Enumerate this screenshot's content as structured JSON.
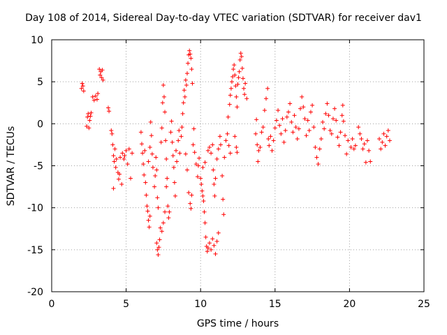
{
  "chart_data": {
    "type": "scatter",
    "title": "Day 108 of 2014, Sidereal Day-to-day VTEC variation (SDTVAR) for receiver dav1",
    "xlabel": "GPS time / hours",
    "ylabel": "SDTVAR / TECUs",
    "xlim": [
      0,
      25
    ],
    "ylim": [
      -20,
      10
    ],
    "xticks": [
      "0",
      "5",
      "10",
      "15",
      "20",
      "25"
    ],
    "yticks": [
      "-20",
      "-15",
      "-10",
      "-5",
      "0",
      "5",
      "10"
    ],
    "grid": true,
    "marker": "+",
    "color": "#ff0000",
    "series": [
      {
        "name": "SDTVAR",
        "points": [
          [
            2.0,
            4.2
          ],
          [
            2.05,
            4.8
          ],
          [
            2.1,
            4.5
          ],
          [
            2.15,
            3.9
          ],
          [
            2.35,
            -0.3
          ],
          [
            2.4,
            0.8
          ],
          [
            2.45,
            1.2
          ],
          [
            2.5,
            -0.5
          ],
          [
            2.55,
            0.4
          ],
          [
            2.6,
            0.9
          ],
          [
            2.65,
            1.3
          ],
          [
            2.75,
            3.2
          ],
          [
            2.85,
            2.8
          ],
          [
            2.95,
            3.3
          ],
          [
            3.05,
            2.9
          ],
          [
            3.1,
            3.6
          ],
          [
            3.2,
            6.5
          ],
          [
            3.25,
            5.8
          ],
          [
            3.3,
            6.2
          ],
          [
            3.35,
            5.5
          ],
          [
            3.4,
            6.4
          ],
          [
            3.45,
            5.2
          ],
          [
            3.8,
            1.9
          ],
          [
            3.85,
            1.5
          ],
          [
            4.0,
            -0.8
          ],
          [
            4.05,
            -1.2
          ],
          [
            4.1,
            -2.5
          ],
          [
            4.15,
            -3.8
          ],
          [
            4.2,
            -4.5
          ],
          [
            4.25,
            -3.0
          ],
          [
            4.3,
            -5.2
          ],
          [
            4.35,
            -4.2
          ],
          [
            4.45,
            -5.8
          ],
          [
            4.5,
            -6.6
          ],
          [
            4.55,
            -6.0
          ],
          [
            4.15,
            -7.7
          ],
          [
            4.6,
            -4.0
          ],
          [
            4.7,
            -7.2
          ],
          [
            4.75,
            -3.5
          ],
          [
            4.85,
            -4.2
          ],
          [
            4.9,
            -3.8
          ],
          [
            5.0,
            -3.2
          ],
          [
            5.1,
            -4.8
          ],
          [
            5.2,
            -3.0
          ],
          [
            5.3,
            -6.5
          ],
          [
            5.4,
            -3.5
          ],
          [
            6.0,
            -1.0
          ],
          [
            6.05,
            -2.4
          ],
          [
            6.1,
            -3.5
          ],
          [
            6.15,
            -4.8
          ],
          [
            6.2,
            -6.1
          ],
          [
            6.25,
            -3.2
          ],
          [
            6.3,
            -7.0
          ],
          [
            6.35,
            -8.5
          ],
          [
            6.4,
            -9.8
          ],
          [
            6.45,
            -10.4
          ],
          [
            6.5,
            -11.5
          ],
          [
            6.55,
            -12.3
          ],
          [
            6.6,
            -11.0
          ],
          [
            6.5,
            -4.5
          ],
          [
            6.6,
            -2.8
          ],
          [
            6.65,
            0.2
          ],
          [
            6.7,
            -1.4
          ],
          [
            6.75,
            -3.6
          ],
          [
            6.8,
            -5.2
          ],
          [
            6.9,
            -7.5
          ],
          [
            6.95,
            -6.2
          ],
          [
            7.0,
            -4.0
          ],
          [
            7.05,
            -5.5
          ],
          [
            7.1,
            -8.8
          ],
          [
            7.15,
            -10.0
          ],
          [
            7.05,
            -14.2
          ],
          [
            7.1,
            -15.0
          ],
          [
            7.15,
            -15.6
          ],
          [
            7.2,
            -14.7
          ],
          [
            7.25,
            -13.8
          ],
          [
            7.3,
            -12.4
          ],
          [
            7.35,
            -2.2
          ],
          [
            7.4,
            -0.5
          ],
          [
            7.45,
            2.5
          ],
          [
            7.5,
            4.6
          ],
          [
            7.55,
            3.2
          ],
          [
            7.6,
            1.4
          ],
          [
            7.65,
            -2.0
          ],
          [
            7.7,
            -4.2
          ],
          [
            7.75,
            -6.5
          ],
          [
            7.8,
            -9.8
          ],
          [
            7.85,
            -11.2
          ],
          [
            7.9,
            -10.5
          ],
          [
            7.4,
            -12.8
          ],
          [
            7.5,
            -11.8
          ],
          [
            7.6,
            -10.5
          ],
          [
            7.7,
            -7.5
          ],
          [
            8.0,
            -1.0
          ],
          [
            8.05,
            0.3
          ],
          [
            8.1,
            -2.2
          ],
          [
            8.15,
            -3.8
          ],
          [
            8.2,
            -5.2
          ],
          [
            8.25,
            -7.0
          ],
          [
            8.3,
            -8.6
          ],
          [
            8.35,
            -3.2
          ],
          [
            8.4,
            -4.5
          ],
          [
            8.5,
            -2.0
          ],
          [
            8.55,
            -0.8
          ],
          [
            8.6,
            -3.5
          ],
          [
            8.7,
            -1.5
          ],
          [
            8.75,
            -0.4
          ],
          [
            8.8,
            1.2
          ],
          [
            8.85,
            2.5
          ],
          [
            8.9,
            4.0
          ],
          [
            8.95,
            3.2
          ],
          [
            9.0,
            5.2
          ],
          [
            9.05,
            4.6
          ],
          [
            9.1,
            6.0
          ],
          [
            9.15,
            7.2
          ],
          [
            9.2,
            8.2
          ],
          [
            9.25,
            8.7
          ],
          [
            9.3,
            8.3
          ],
          [
            9.35,
            7.8
          ],
          [
            9.4,
            6.5
          ],
          [
            9.45,
            4.8
          ],
          [
            9.0,
            -3.6
          ],
          [
            9.1,
            -5.5
          ],
          [
            9.2,
            -8.2
          ],
          [
            9.3,
            -9.5
          ],
          [
            9.35,
            -10.1
          ],
          [
            9.4,
            -8.5
          ],
          [
            9.5,
            -2.5
          ],
          [
            9.55,
            -0.6
          ],
          [
            9.6,
            -3.4
          ],
          [
            9.7,
            -4.8
          ],
          [
            9.8,
            -6.3
          ],
          [
            9.85,
            -5.0
          ],
          [
            9.9,
            -4.1
          ],
          [
            10.0,
            -6.5
          ],
          [
            10.05,
            -7.2
          ],
          [
            10.1,
            -8.0
          ],
          [
            10.15,
            -8.6
          ],
          [
            10.2,
            -9.2
          ],
          [
            10.25,
            -10.5
          ],
          [
            10.3,
            -11.8
          ],
          [
            10.35,
            -13.5
          ],
          [
            10.4,
            -14.6
          ],
          [
            10.45,
            -15.2
          ],
          [
            10.5,
            -14.8
          ],
          [
            10.6,
            -14.2
          ],
          [
            10.7,
            -15.0
          ],
          [
            10.8,
            -13.7
          ],
          [
            10.9,
            -14.5
          ],
          [
            11.0,
            -15.5
          ],
          [
            11.1,
            -14.0
          ],
          [
            11.2,
            -13.0
          ],
          [
            10.15,
            -5.2
          ],
          [
            10.3,
            -4.6
          ],
          [
            10.5,
            -3.2
          ],
          [
            10.6,
            -2.8
          ],
          [
            10.7,
            -3.5
          ],
          [
            10.8,
            -2.5
          ],
          [
            10.85,
            -5.5
          ],
          [
            10.9,
            -7.2
          ],
          [
            10.95,
            -8.6
          ],
          [
            11.0,
            -6.5
          ],
          [
            11.1,
            -4.2
          ],
          [
            11.2,
            -3.0
          ],
          [
            11.3,
            -1.5
          ],
          [
            11.35,
            -2.5
          ],
          [
            11.45,
            -6.2
          ],
          [
            11.5,
            -9.0
          ],
          [
            11.55,
            -10.8
          ],
          [
            11.6,
            -4.0
          ],
          [
            11.7,
            -2.0
          ],
          [
            11.8,
            -1.2
          ],
          [
            11.9,
            -2.6
          ],
          [
            12.0,
            -3.5
          ],
          [
            11.85,
            0.8
          ],
          [
            11.95,
            2.3
          ],
          [
            12.0,
            3.4
          ],
          [
            12.05,
            4.2
          ],
          [
            12.1,
            5.0
          ],
          [
            12.15,
            5.6
          ],
          [
            12.2,
            6.5
          ],
          [
            12.25,
            7.0
          ],
          [
            12.3,
            5.8
          ],
          [
            12.35,
            4.5
          ],
          [
            12.4,
            3.2
          ],
          [
            12.45,
            2.0
          ],
          [
            12.5,
            4.7
          ],
          [
            12.55,
            5.5
          ],
          [
            12.6,
            6.2
          ],
          [
            12.65,
            7.6
          ],
          [
            12.7,
            8.4
          ],
          [
            12.75,
            8.0
          ],
          [
            12.8,
            6.6
          ],
          [
            12.85,
            5.4
          ],
          [
            12.9,
            4.2
          ],
          [
            12.95,
            3.5
          ],
          [
            13.0,
            4.8
          ],
          [
            13.1,
            3.0
          ],
          [
            12.3,
            -1.5
          ],
          [
            12.4,
            -2.8
          ],
          [
            12.45,
            -3.4
          ],
          [
            13.7,
            -1.2
          ],
          [
            13.75,
            0.5
          ],
          [
            13.8,
            -2.5
          ],
          [
            13.85,
            -4.5
          ],
          [
            13.9,
            -3.2
          ],
          [
            14.0,
            -2.8
          ],
          [
            14.1,
            -1.0
          ],
          [
            14.2,
            -0.4
          ],
          [
            14.3,
            1.6
          ],
          [
            14.4,
            3.0
          ],
          [
            14.5,
            4.2
          ],
          [
            14.55,
            -1.8
          ],
          [
            14.6,
            -2.6
          ],
          [
            14.7,
            -1.5
          ],
          [
            14.8,
            -3.2
          ],
          [
            14.9,
            -2.0
          ],
          [
            15.0,
            -0.5
          ],
          [
            15.1,
            0.4
          ],
          [
            15.2,
            1.6
          ],
          [
            15.3,
            -0.2
          ],
          [
            15.4,
            -1.2
          ],
          [
            15.5,
            0.6
          ],
          [
            15.6,
            -2.2
          ],
          [
            15.7,
            -0.8
          ],
          [
            15.8,
            0.8
          ],
          [
            15.9,
            1.4
          ],
          [
            16.0,
            2.4
          ],
          [
            16.1,
            0.2
          ],
          [
            16.2,
            -1.0
          ],
          [
            16.3,
            1.0
          ],
          [
            16.4,
            -0.4
          ],
          [
            16.5,
            -1.8
          ],
          [
            16.6,
            -0.6
          ],
          [
            16.7,
            1.8
          ],
          [
            16.8,
            3.2
          ],
          [
            16.9,
            2.0
          ],
          [
            17.0,
            0.6
          ],
          [
            17.1,
            -1.4
          ],
          [
            17.2,
            0.4
          ],
          [
            17.3,
            -0.8
          ],
          [
            17.4,
            1.4
          ],
          [
            17.5,
            2.2
          ],
          [
            17.6,
            -0.4
          ],
          [
            17.7,
            -2.8
          ],
          [
            17.8,
            -4.0
          ],
          [
            17.9,
            -4.8
          ],
          [
            18.0,
            -3.0
          ],
          [
            18.1,
            -1.8
          ],
          [
            18.2,
            0.2
          ],
          [
            18.3,
            -0.6
          ],
          [
            18.4,
            1.2
          ],
          [
            18.5,
            2.4
          ],
          [
            18.6,
            1.0
          ],
          [
            18.7,
            -0.8
          ],
          [
            18.8,
            -1.2
          ],
          [
            18.9,
            0.6
          ],
          [
            19.0,
            1.8
          ],
          [
            19.1,
            0.4
          ],
          [
            19.2,
            -1.6
          ],
          [
            19.3,
            -2.6
          ],
          [
            19.4,
            -1.0
          ],
          [
            19.5,
            1.0
          ],
          [
            19.55,
            2.2
          ],
          [
            19.6,
            0.3
          ],
          [
            19.7,
            -1.4
          ],
          [
            19.8,
            -3.6
          ],
          [
            19.9,
            -2.0
          ],
          [
            20.1,
            -2.8
          ],
          [
            20.2,
            -1.8
          ],
          [
            20.3,
            -3.0
          ],
          [
            20.4,
            -2.6
          ],
          [
            20.6,
            -0.4
          ],
          [
            20.7,
            -1.2
          ],
          [
            20.8,
            -1.8
          ],
          [
            20.9,
            -3.0
          ],
          [
            21.0,
            -2.4
          ],
          [
            21.1,
            -4.6
          ],
          [
            21.2,
            -2.0
          ],
          [
            21.3,
            -3.2
          ],
          [
            21.4,
            -4.5
          ],
          [
            22.0,
            -1.8
          ],
          [
            22.1,
            -3.0
          ],
          [
            22.2,
            -2.2
          ],
          [
            22.3,
            -1.2
          ],
          [
            22.4,
            -2.6
          ],
          [
            22.5,
            -1.5
          ],
          [
            22.6,
            -0.8
          ],
          [
            22.7,
            -2.0
          ]
        ]
      }
    ]
  }
}
